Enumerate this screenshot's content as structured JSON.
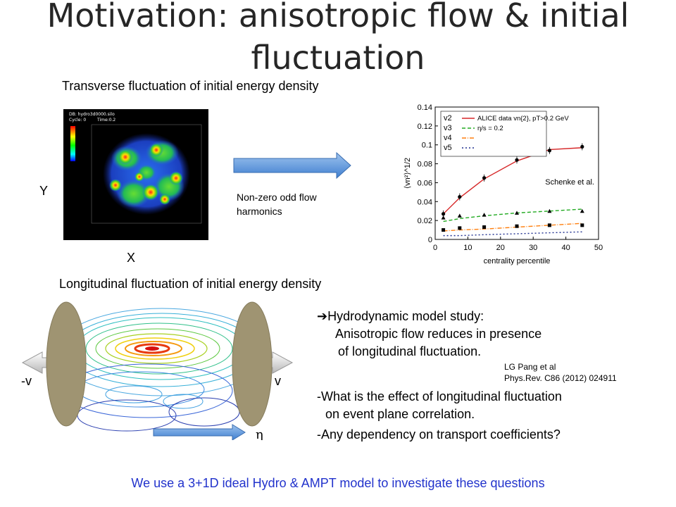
{
  "slide": {
    "title": "Motivation: anisotropic flow & initial fluctuation",
    "transverse_label": "Transverse fluctuation of initial energy density",
    "longitudinal_label": "Longitudinal fluctuation of initial energy density",
    "axis_y": "Y",
    "axis_x": "X",
    "arrow_caption": "Non-zero odd flow harmonics",
    "hydro_panel": {
      "db": "DB: hydro3d0000.silo",
      "cycle": "Cycle: 0",
      "time": "Time:0.2"
    },
    "contour": {
      "left_label": "-v",
      "right_label": "v",
      "eta_label": "η"
    },
    "bullets": {
      "b1_line1": "Hydrodynamic model study:",
      "b1_line2": "Anisotropic flow reduces in presence",
      "b1_line3": "of longitudinal fluctuation.",
      "ref_line1": "LG Pang et al",
      "ref_line2": "Phys.Rev. C86 (2012) 024911",
      "b2_line1": "-What is the effect of longitudinal fluctuation",
      "b2_line2": "on event plane correlation.",
      "b3": "-Any dependency on transport coefficients?"
    },
    "footer": "We use  a 3+1D ideal Hydro & AMPT model to investigate these questions"
  },
  "chart_data": {
    "type": "line",
    "xlabel": "centrality percentile",
    "ylabel": "⟨vn²⟩^1/2",
    "xlim": [
      0,
      50
    ],
    "ylim": [
      0,
      0.14
    ],
    "xticks": [
      0,
      10,
      20,
      30,
      40,
      50
    ],
    "yticks": [
      0,
      0.02,
      0.04,
      0.06,
      0.08,
      0.1,
      0.12,
      0.14
    ],
    "annotation": "Schenke et al.",
    "legend": {
      "position": "top-left",
      "entries": [
        "v2",
        "v3",
        "v4",
        "v5",
        "ALICE data vn{2}, pT>0.2 GeV",
        "η/s = 0.2"
      ]
    },
    "colors": {
      "v2": "#d62728",
      "v3": "#22aa22",
      "v4": "#ff7f0e",
      "v5": "#1f2f8f",
      "data": "#000000"
    },
    "series": [
      {
        "name": "v2",
        "x": [
          2.5,
          7.5,
          15,
          25,
          35,
          45
        ],
        "values": [
          0.027,
          0.044,
          0.064,
          0.083,
          0.095,
          0.097
        ]
      },
      {
        "name": "v3",
        "x": [
          2.5,
          7.5,
          15,
          25,
          35,
          45
        ],
        "values": [
          0.019,
          0.022,
          0.025,
          0.028,
          0.03,
          0.032
        ]
      },
      {
        "name": "v4",
        "x": [
          2.5,
          7.5,
          15,
          25,
          35,
          45
        ],
        "values": [
          0.009,
          0.01,
          0.011,
          0.013,
          0.015,
          0.017
        ]
      },
      {
        "name": "v5",
        "x": [
          2.5,
          7.5,
          15,
          25,
          35,
          45
        ],
        "values": [
          0.004,
          0.004,
          0.005,
          0.006,
          0.007,
          0.008
        ]
      }
    ],
    "data_points": {
      "v2": [
        [
          2.5,
          0.027
        ],
        [
          7.5,
          0.045
        ],
        [
          15,
          0.065
        ],
        [
          25,
          0.084
        ],
        [
          35,
          0.094
        ],
        [
          45,
          0.098
        ]
      ],
      "v3": [
        [
          2.5,
          0.023
        ],
        [
          7.5,
          0.025
        ],
        [
          15,
          0.026
        ],
        [
          25,
          0.028
        ],
        [
          35,
          0.03
        ],
        [
          45,
          0.03
        ]
      ],
      "v4": [
        [
          2.5,
          0.01
        ],
        [
          7.5,
          0.012
        ],
        [
          15,
          0.013
        ],
        [
          25,
          0.014
        ],
        [
          35,
          0.015
        ],
        [
          45,
          0.015
        ]
      ]
    }
  }
}
